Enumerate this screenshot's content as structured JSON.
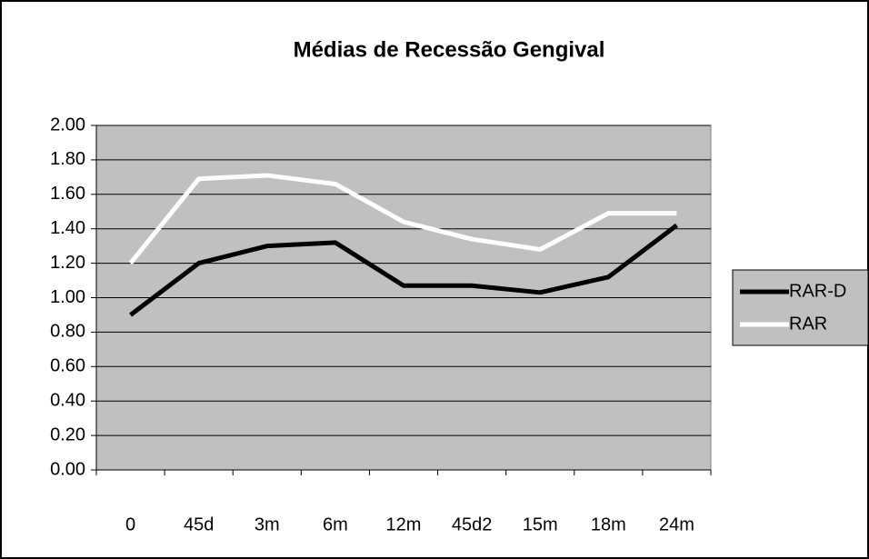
{
  "chart_data": {
    "type": "line",
    "title": "Médias de Recessão Gengival",
    "categories": [
      "0",
      "45d",
      "3m",
      "6m",
      "12m",
      "45d2",
      "15m",
      "18m",
      "24m"
    ],
    "series": [
      {
        "name": "RAR-D",
        "color": "#000000",
        "values": [
          0.9,
          1.2,
          1.3,
          1.32,
          1.07,
          1.07,
          1.03,
          1.12,
          1.42
        ]
      },
      {
        "name": "RAR",
        "color": "#ffffff",
        "values": [
          1.2,
          1.69,
          1.71,
          1.66,
          1.44,
          1.34,
          1.28,
          1.49,
          1.49
        ]
      }
    ],
    "ylim": [
      0,
      2
    ],
    "yticks": [
      {
        "value": 0,
        "label": "0.00"
      },
      {
        "value": 0.2,
        "label": "0.20"
      },
      {
        "value": 0.4,
        "label": "0.40"
      },
      {
        "value": 0.6,
        "label": "0.60"
      },
      {
        "value": 0.8,
        "label": "0.80"
      },
      {
        "value": 1,
        "label": "1.00"
      },
      {
        "value": 1.2,
        "label": "1.20"
      },
      {
        "value": 1.4,
        "label": "1.40"
      },
      {
        "value": 1.6,
        "label": "1.60"
      },
      {
        "value": 1.8,
        "label": "1.80"
      },
      {
        "value": 2,
        "label": "2.00"
      }
    ],
    "grid": true,
    "plot_background": "#c0c0c0",
    "legend": "right"
  }
}
